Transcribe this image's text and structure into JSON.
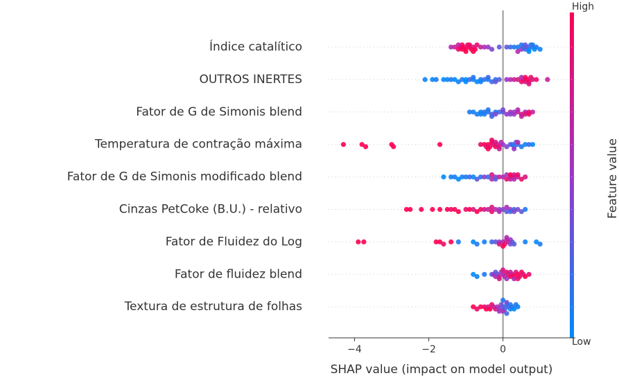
{
  "chart_data": {
    "type": "beeswarm",
    "xlabel": "SHAP value (impact on model output)",
    "colorbar_label": "Feature value",
    "colorbar_high": "High",
    "colorbar_low": "Low",
    "colormap": [
      "#008bfb",
      "#9c37c8",
      "#ff0052"
    ],
    "xlim": [
      -4.7,
      1.95
    ],
    "xticks": [
      {
        "value": -4,
        "label": "−4"
      },
      {
        "value": -2,
        "label": "−2"
      },
      0
    ],
    "series": [
      {
        "name": "Índice catalítico",
        "values": [
          -1.4,
          -1.3,
          -1.2,
          -1.15,
          -1.1,
          -1.05,
          -1.0,
          -0.95,
          -0.9,
          -0.85,
          -0.8,
          -0.75,
          -0.7,
          -0.6,
          -0.5,
          -0.4,
          -1.1,
          -1.0,
          -0.9,
          -0.8,
          -1.2,
          -0.3,
          -0.1,
          0.1,
          0.2,
          0.3,
          0.4,
          0.5,
          0.55,
          0.6,
          0.65,
          0.7,
          0.75,
          0.8,
          0.85,
          0.9,
          1.0,
          0.6,
          0.7,
          0.5,
          0.8,
          0.4
        ],
        "feature_values": [
          0.6,
          0.7,
          0.9,
          1,
          1,
          0.9,
          1,
          0.9,
          1,
          1,
          0.8,
          1,
          0.9,
          0.7,
          0.6,
          0.5,
          1,
          1,
          0.9,
          1,
          0.7,
          0.4,
          0.3,
          0.3,
          0.2,
          0.1,
          0.1,
          0.5,
          0.1,
          0.2,
          0.4,
          0,
          0.1,
          0.2,
          0,
          0.1,
          0.05,
          0.3,
          0,
          0.15,
          0.1,
          0.6
        ]
      },
      {
        "name": "OUTROS INERTES",
        "values": [
          -2.1,
          -1.9,
          -1.8,
          -1.6,
          -1.5,
          -1.4,
          -1.3,
          -1.2,
          -1.1,
          -1.0,
          -0.9,
          -0.8,
          -0.7,
          -0.6,
          -0.5,
          -0.4,
          -0.3,
          -0.2,
          -0.1,
          -1.0,
          -0.8,
          -0.6,
          -0.4,
          -0.2,
          0.1,
          0.2,
          0.3,
          0.4,
          0.5,
          0.55,
          0.6,
          0.65,
          0.7,
          0.75,
          0.8,
          0.9,
          1.2,
          0.6,
          0.7,
          0.5
        ],
        "feature_values": [
          0.05,
          0,
          0.1,
          0,
          0.05,
          0.1,
          0,
          0.05,
          0.1,
          0,
          0.2,
          0.05,
          0,
          0.1,
          0.15,
          0.05,
          0.2,
          0.1,
          0.3,
          0,
          0.1,
          0.05,
          0.2,
          0.3,
          0.5,
          0.6,
          0.7,
          0.8,
          0.9,
          1,
          0.8,
          0.9,
          1,
          0.9,
          0.8,
          0.9,
          0.7,
          1,
          0.8,
          0.6
        ]
      },
      {
        "name": "Fator de G de Simonis blend",
        "values": [
          -0.9,
          -0.8,
          -0.7,
          -0.6,
          -0.5,
          -0.4,
          -0.3,
          -0.2,
          -0.1,
          -0.6,
          -0.4,
          -0.2,
          0.0,
          0.1,
          0.2,
          0.3,
          0.4,
          0.5,
          0.6,
          0.7,
          0.8,
          0.2,
          0.4,
          0.6,
          0.3,
          0.5,
          0.7,
          -0.3,
          -0.5,
          0.0
        ],
        "feature_values": [
          0.1,
          0.05,
          0.1,
          0,
          0.2,
          0.1,
          0.3,
          0.1,
          0.2,
          0.05,
          0.1,
          0.4,
          0.3,
          0.5,
          0.6,
          0.5,
          0.7,
          0.8,
          0.6,
          0.9,
          0.7,
          0.4,
          0.6,
          0.8,
          0.5,
          0.7,
          0.9,
          0.2,
          0.1,
          0.4
        ]
      },
      {
        "name": "Temperatura de contração máxima",
        "values": [
          -4.3,
          -3.8,
          -3.7,
          -3.0,
          -2.95,
          -1.7,
          -0.6,
          -0.5,
          -0.45,
          -0.4,
          -0.35,
          -0.3,
          -0.25,
          -0.2,
          -0.15,
          -0.1,
          -0.05,
          -0.4,
          -0.3,
          -0.2,
          -0.1,
          0.0,
          0.1,
          0.2,
          0.25,
          0.3,
          0.35,
          0.4,
          0.5,
          0.6,
          0.7,
          0.8,
          0.3,
          0.4
        ],
        "feature_values": [
          1,
          1,
          1,
          1,
          1,
          1,
          0.9,
          1,
          0.8,
          1,
          0.9,
          1,
          0.8,
          1,
          0.7,
          0.9,
          0.6,
          1,
          0.9,
          0.8,
          0.7,
          0.5,
          0.4,
          0.3,
          0.2,
          0.1,
          0.3,
          0.2,
          0.1,
          0.05,
          0.2,
          0,
          0.5,
          0.6
        ]
      },
      {
        "name": "Fator de G de Simonis modificado blend",
        "values": [
          -1.6,
          -1.4,
          -1.3,
          -1.2,
          -1.1,
          -1.0,
          -0.9,
          -0.8,
          -0.7,
          -0.6,
          -0.5,
          -0.4,
          -0.3,
          -0.2,
          -0.1,
          -0.3,
          -0.2,
          0.0,
          0.1,
          0.2,
          0.3,
          0.4,
          0.5,
          0.6,
          0.1,
          0.2,
          0.3,
          0.4,
          0.2,
          0.3
        ],
        "feature_values": [
          0,
          0.05,
          0.1,
          0,
          0.05,
          0.1,
          0.2,
          0,
          0.3,
          0.1,
          0.5,
          0.2,
          0.6,
          0.4,
          0.7,
          0.8,
          0.3,
          0.6,
          0.9,
          0.8,
          1,
          0.7,
          0.9,
          0.8,
          0.5,
          0.7,
          0.6,
          0.9,
          1,
          0.8
        ]
      },
      {
        "name": "Cinzas PetCoke (B.U.) - relativo",
        "values": [
          -2.6,
          -2.5,
          -2.2,
          -1.9,
          -1.7,
          -1.5,
          -1.4,
          -1.3,
          -1.2,
          -1.0,
          -0.9,
          -0.8,
          -0.7,
          -0.6,
          -0.5,
          -0.4,
          -0.3,
          -0.2,
          -0.1,
          -0.3,
          -0.1,
          0.0,
          0.1,
          0.2,
          0.3,
          0.4,
          0.5,
          0.6,
          0.1,
          0.2,
          0.3
        ],
        "feature_values": [
          1,
          1,
          1,
          1,
          1,
          1,
          0.9,
          1,
          1,
          0.9,
          1,
          0.8,
          1,
          0.9,
          0.8,
          0.7,
          0.9,
          0.6,
          0.5,
          0.8,
          0.6,
          0.4,
          0.3,
          0.5,
          0.2,
          0.4,
          0.3,
          0.1,
          0.6,
          0.2,
          0.4
        ]
      },
      {
        "name": "Fator de Fluidez do Log",
        "values": [
          -3.9,
          -3.75,
          -1.8,
          -1.7,
          -1.6,
          -1.4,
          -1.2,
          -0.8,
          -0.7,
          -0.5,
          -0.3,
          -0.2,
          -0.1,
          0.0,
          0.05,
          0.1,
          0.15,
          0.2,
          0.25,
          0.3,
          0.0,
          0.1,
          -0.1,
          0.2,
          0.6,
          0.9,
          1.0
        ],
        "feature_values": [
          1,
          1,
          1,
          1,
          0.9,
          1,
          0.1,
          0,
          0.1,
          0.05,
          0.2,
          0.3,
          0.5,
          0.6,
          0.9,
          0.7,
          0.8,
          0.4,
          0.2,
          0.3,
          1,
          0.6,
          0.8,
          0.5,
          0.05,
          0,
          0.1
        ]
      },
      {
        "name": "Fator de fluidez blend",
        "values": [
          -0.8,
          -0.7,
          -0.5,
          -0.3,
          -0.25,
          -0.2,
          -0.15,
          -0.1,
          -0.05,
          0.0,
          -0.2,
          -0.1,
          0.05,
          0.1,
          0.15,
          0.2,
          0.25,
          0.3,
          0.35,
          0.4,
          0.45,
          0.5,
          0.55,
          0.6,
          0.7,
          0.2,
          0.3,
          0.4,
          0.1,
          0.0
        ],
        "feature_values": [
          0,
          0.05,
          0.1,
          0.3,
          0.5,
          0.6,
          0.4,
          0.7,
          0.5,
          0.6,
          0.3,
          0.8,
          0.7,
          0.9,
          0.8,
          1,
          0.9,
          1,
          0.8,
          1,
          0.9,
          1,
          0.8,
          1,
          0.9,
          0.7,
          0.6,
          0.9,
          0.5,
          0.8
        ]
      },
      {
        "name": "Textura de estrutura de folhas",
        "values": [
          -0.8,
          -0.7,
          -0.6,
          -0.5,
          -0.45,
          -0.4,
          -0.35,
          -0.3,
          -0.25,
          -0.2,
          -0.15,
          -0.1,
          -0.05,
          0.0,
          0.05,
          0.1,
          0.15,
          0.2,
          0.25,
          0.3,
          0.35,
          0.4,
          0.0,
          0.1,
          0.2,
          -0.1,
          0.1,
          0.0
        ],
        "feature_values": [
          1,
          0.9,
          1,
          0.9,
          1,
          0.8,
          1,
          0.9,
          0.7,
          0.8,
          0.6,
          0.5,
          0.4,
          0.3,
          0.2,
          0.1,
          0.3,
          0.05,
          0.2,
          0,
          0.1,
          0.05,
          0.6,
          0.4,
          0.1,
          0.5,
          0.2,
          0.1
        ]
      }
    ]
  }
}
